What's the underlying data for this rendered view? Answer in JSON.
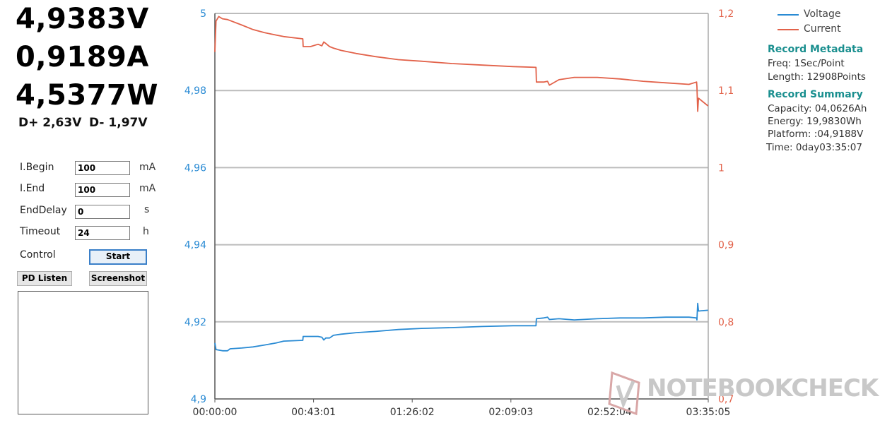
{
  "readouts": {
    "voltage": "4,9383V",
    "current": "0,9189A",
    "power": "4,5377W",
    "d_plus": "D+ 2,63V",
    "d_minus": "D- 1,97V"
  },
  "settings": [
    {
      "label": "I.Begin",
      "value": "100",
      "unit": "mA"
    },
    {
      "label": "I.End",
      "value": "100",
      "unit": "mA"
    },
    {
      "label": "EndDelay",
      "value": "0",
      "unit": "s"
    },
    {
      "label": "Timeout",
      "value": "24",
      "unit": "h"
    }
  ],
  "control": {
    "label": "Control",
    "start_label": "Start",
    "pd_listen_label": "PD Listen",
    "screenshot_label": "Screenshot"
  },
  "legend": {
    "voltage": "Voltage",
    "current": "Current"
  },
  "info": {
    "metadata_title": "Record Metadata",
    "freq": "Freq: 1Sec/Point",
    "length": "Length: 12908Points",
    "summary_title": "Record Summary",
    "capacity": "Capacity: 04,0626Ah",
    "energy": "Energy: 19,9830Wh",
    "platform": "Platform: :04,9188V",
    "time": "Time: 0day03:35:07"
  },
  "watermark": "NOTEBOOKCHECK",
  "colors": {
    "voltage": "#2a8bd4",
    "current": "#e2624a",
    "grid": "#bcbcbc",
    "heading": "#1a8f8f"
  },
  "chart_data": {
    "type": "line",
    "x_ticks": [
      "00:00:00",
      "00:43:01",
      "01:26:02",
      "02:09:03",
      "02:52:04",
      "03:35:05"
    ],
    "x_range_seconds": [
      0,
      12905
    ],
    "y_left": {
      "ticks": [
        "5",
        "4,98",
        "4,96",
        "4,94",
        "4,92",
        "4,9"
      ],
      "range": [
        4.9,
        5.0
      ]
    },
    "y_right": {
      "ticks": [
        "1,2",
        "1,1",
        "1",
        "0,9",
        "0,8",
        "0,7"
      ],
      "range": [
        0.7,
        1.2
      ]
    },
    "grid": true,
    "legend_position": "top-right",
    "series": [
      {
        "name": "Voltage",
        "axis": "left",
        "points": [
          [
            0,
            4.9145
          ],
          [
            30,
            4.9128
          ],
          [
            200,
            4.9125
          ],
          [
            330,
            4.9125
          ],
          [
            400,
            4.913
          ],
          [
            700,
            4.9132
          ],
          [
            1000,
            4.9135
          ],
          [
            1300,
            4.914
          ],
          [
            1600,
            4.9145
          ],
          [
            1800,
            4.915
          ],
          [
            2300,
            4.9152
          ],
          [
            2310,
            4.9162
          ],
          [
            2700,
            4.9162
          ],
          [
            2800,
            4.916
          ],
          [
            2850,
            4.9153
          ],
          [
            2900,
            4.9158
          ],
          [
            3000,
            4.9158
          ],
          [
            3100,
            4.9165
          ],
          [
            3300,
            4.9168
          ],
          [
            3700,
            4.9172
          ],
          [
            4200,
            4.9175
          ],
          [
            4800,
            4.918
          ],
          [
            5400,
            4.9183
          ],
          [
            6200,
            4.9185
          ],
          [
            7000,
            4.9188
          ],
          [
            7800,
            4.919
          ],
          [
            8400,
            4.919
          ],
          [
            8410,
            4.9208
          ],
          [
            8600,
            4.921
          ],
          [
            8700,
            4.9212
          ],
          [
            8750,
            4.9206
          ],
          [
            9000,
            4.9208
          ],
          [
            9400,
            4.9205
          ],
          [
            10000,
            4.9208
          ],
          [
            10600,
            4.921
          ],
          [
            11200,
            4.921
          ],
          [
            11800,
            4.9212
          ],
          [
            12400,
            4.9212
          ],
          [
            12600,
            4.921
          ],
          [
            12610,
            4.9205
          ],
          [
            12630,
            4.9248
          ],
          [
            12650,
            4.9228
          ],
          [
            12900,
            4.923
          ]
        ]
      },
      {
        "name": "Current",
        "axis": "right",
        "points": [
          [
            0,
            1.15
          ],
          [
            30,
            1.19
          ],
          [
            100,
            1.196
          ],
          [
            200,
            1.193
          ],
          [
            330,
            1.192
          ],
          [
            700,
            1.185
          ],
          [
            1000,
            1.179
          ],
          [
            1300,
            1.175
          ],
          [
            1600,
            1.172
          ],
          [
            1800,
            1.17
          ],
          [
            2300,
            1.167
          ],
          [
            2310,
            1.157
          ],
          [
            2500,
            1.157
          ],
          [
            2700,
            1.16
          ],
          [
            2800,
            1.158
          ],
          [
            2850,
            1.163
          ],
          [
            2900,
            1.161
          ],
          [
            3000,
            1.157
          ],
          [
            3100,
            1.155
          ],
          [
            3300,
            1.152
          ],
          [
            3700,
            1.148
          ],
          [
            4200,
            1.144
          ],
          [
            4800,
            1.14
          ],
          [
            5400,
            1.138
          ],
          [
            6200,
            1.135
          ],
          [
            7000,
            1.133
          ],
          [
            7800,
            1.131
          ],
          [
            8400,
            1.13
          ],
          [
            8410,
            1.111
          ],
          [
            8600,
            1.111
          ],
          [
            8700,
            1.112
          ],
          [
            8750,
            1.107
          ],
          [
            9000,
            1.114
          ],
          [
            9400,
            1.117
          ],
          [
            10000,
            1.117
          ],
          [
            10600,
            1.115
          ],
          [
            11200,
            1.112
          ],
          [
            11800,
            1.11
          ],
          [
            12400,
            1.108
          ],
          [
            12600,
            1.111
          ],
          [
            12610,
            1.105
          ],
          [
            12630,
            1.073
          ],
          [
            12650,
            1.09
          ],
          [
            12900,
            1.08
          ]
        ]
      }
    ]
  }
}
